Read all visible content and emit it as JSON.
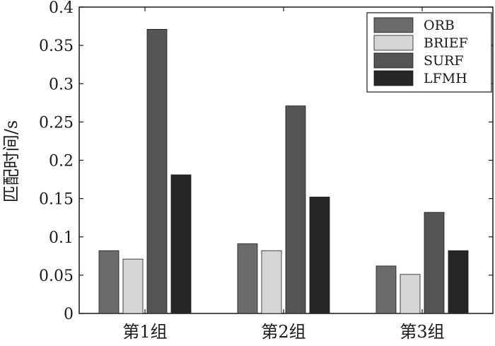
{
  "chart_data": {
    "type": "bar",
    "title": "",
    "xlabel": "",
    "ylabel": "匹配时间/s",
    "ylim": [
      0,
      0.4
    ],
    "yticks": [
      "0",
      "0.05",
      "0.1",
      "0.15",
      "0.2",
      "0.25",
      "0.3",
      "0.35",
      "0.4"
    ],
    "categories": [
      "第1组",
      "第2组",
      "第3组"
    ],
    "series": [
      {
        "name": "ORB",
        "values": [
          0.082,
          0.091,
          0.062
        ],
        "color": "#6b6b6b"
      },
      {
        "name": "BRIEF",
        "values": [
          0.071,
          0.082,
          0.051
        ],
        "color": "#d6d6d6"
      },
      {
        "name": "SURF",
        "values": [
          0.371,
          0.271,
          0.132
        ],
        "color": "#555555"
      },
      {
        "name": "LFMH",
        "values": [
          0.181,
          0.152,
          0.082
        ],
        "color": "#262626"
      }
    ],
    "legend_position": "top-right",
    "grid": false
  }
}
